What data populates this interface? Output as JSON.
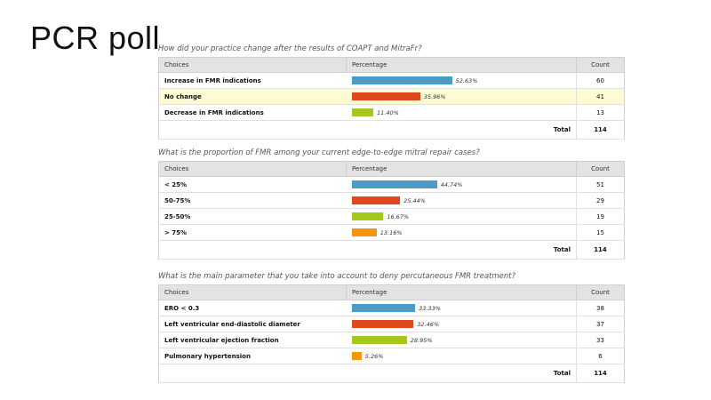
{
  "slide": {
    "title": "PCR poll"
  },
  "headers": {
    "choices": "Choices",
    "percentage": "Percentage",
    "count": "Count",
    "total": "Total"
  },
  "colors": {
    "blue": "#4a9cc7",
    "red": "#dd4b1c",
    "green": "#a6c81a",
    "orange": "#f3960f",
    "highlight": "#fdfbd3"
  },
  "polls": [
    {
      "question": "How did your practice change after the results of COAPT and MitraFr?",
      "total": "114",
      "rows": [
        {
          "choice": "Increase in FMR indications",
          "pct": "52.63%",
          "value": 52.63,
          "count": "60",
          "color": "#4a9cc7",
          "highlight": false
        },
        {
          "choice": "No change",
          "pct": "35.96%",
          "value": 35.96,
          "count": "41",
          "color": "#dd4b1c",
          "highlight": true
        },
        {
          "choice": "Decrease in FMR indications",
          "pct": "11.40%",
          "value": 11.4,
          "count": "13",
          "color": "#a6c81a",
          "highlight": false
        }
      ]
    },
    {
      "question": "What is the proportion of FMR among your current edge-to-edge mitral repair cases?",
      "total": "114",
      "rows": [
        {
          "choice": "< 25%",
          "pct": "44.74%",
          "value": 44.74,
          "count": "51",
          "color": "#4a9cc7",
          "highlight": false
        },
        {
          "choice": "50-75%",
          "pct": "25.44%",
          "value": 25.44,
          "count": "29",
          "color": "#dd4b1c",
          "highlight": false
        },
        {
          "choice": "25-50%",
          "pct": "16.67%",
          "value": 16.67,
          "count": "19",
          "color": "#a6c81a",
          "highlight": false
        },
        {
          "choice": "> 75%",
          "pct": "13.16%",
          "value": 13.16,
          "count": "15",
          "color": "#f3960f",
          "highlight": false
        }
      ]
    },
    {
      "question": "What is the main parameter that you take into account to deny percutaneous FMR treatment?",
      "total": "114",
      "rows": [
        {
          "choice": "ERO < 0.3",
          "pct": "33.33%",
          "value": 33.33,
          "count": "38",
          "color": "#4a9cc7",
          "highlight": false
        },
        {
          "choice": "Left ventricular end-diastolic diameter",
          "pct": "32.46%",
          "value": 32.46,
          "count": "37",
          "color": "#dd4b1c",
          "highlight": false
        },
        {
          "choice": "Left ventricular ejection fraction",
          "pct": "28.95%",
          "value": 28.95,
          "count": "33",
          "color": "#a6c81a",
          "highlight": false
        },
        {
          "choice": "Pulmonary hypertension",
          "pct": "5.26%",
          "value": 5.26,
          "count": "6",
          "color": "#f3960f",
          "highlight": false
        }
      ]
    }
  ]
}
